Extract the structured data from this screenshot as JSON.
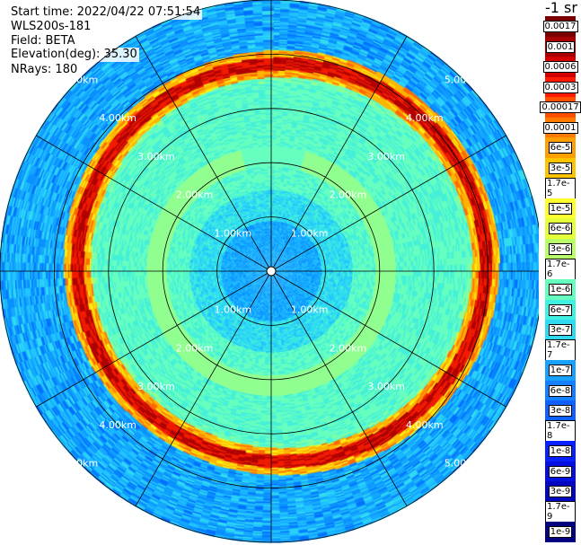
{
  "header": {
    "start_time": "Start time: 2022/04/22 07:51:54",
    "instrument": "WLS200s-181",
    "field": "Field: BETA",
    "elevation": "Elevation(deg): 35.30",
    "nrays": "NRays: 180"
  },
  "colorbar": {
    "unit_label": "-1 sr",
    "labels": [
      "0.0017",
      "0.001",
      "0.0006",
      "0.0003",
      "0.00017",
      "0.0001",
      "6e-5",
      "3e-5",
      "1.7e-5",
      "1e-5",
      "6e-6",
      "3e-6",
      "1.7e-6",
      "1e-6",
      "6e-7",
      "3e-7",
      "1.7e-7",
      "1e-7",
      "6e-8",
      "3e-8",
      "1.7e-8",
      "1e-8",
      "6e-9",
      "3e-9",
      "1.7e-9",
      "1e-9"
    ],
    "colors": [
      "#7a0000",
      "#a80000",
      "#d40000",
      "#ff1a00",
      "#ff5000",
      "#ff7a00",
      "#ffa000",
      "#ffc400",
      "#ffe600",
      "#ffff30",
      "#e6ff3a",
      "#b8ff6a",
      "#8cff96",
      "#66ffbf",
      "#40f0e0",
      "#30d8f0",
      "#20c0ff",
      "#1aa0ff",
      "#1480ff",
      "#0e60ff",
      "#0a40ff",
      "#0620ff",
      "#0410e0",
      "#0208c0",
      "#0104a0",
      "#000080"
    ]
  },
  "chart_data": {
    "type": "heatmap",
    "projection": "polar (PPI)",
    "range_rings_km": [
      1,
      2,
      3,
      4,
      5
    ],
    "ring_labels": [
      "1.00km",
      "2.00km",
      "3.00km",
      "4.00km",
      "5.00km"
    ],
    "max_range_km": 5.0,
    "spoke_spacing_deg": 30,
    "dominant_feature": "high-backscatter ring near 3.6–4.0 km range"
  }
}
